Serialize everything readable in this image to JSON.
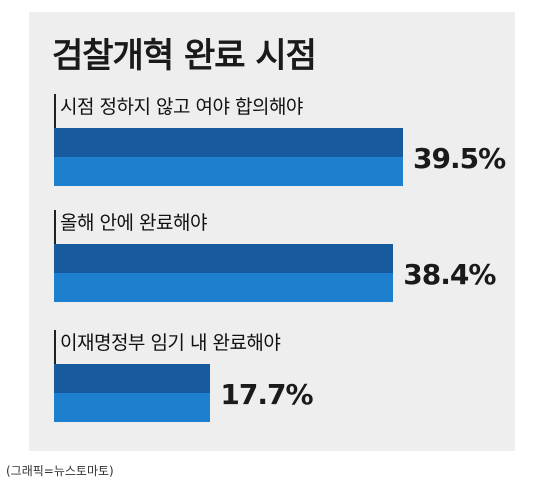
{
  "chart_data": {
    "type": "bar",
    "orientation": "horizontal",
    "title": "검찰개혁 완료 시점",
    "categories": [
      "시점 정하지 않고 여야 합의해야",
      "올해 안에 완료해야",
      "이재명정부 임기 내 완료해야"
    ],
    "values": [
      39.5,
      38.4,
      17.7
    ],
    "value_labels": [
      "39.5%",
      "38.4%",
      "17.7%"
    ],
    "xlim": [
      0,
      45
    ],
    "grid": false,
    "legend": "none",
    "colors": {
      "bar_top": "#175a9e",
      "bar_bottom": "#1f7fcf",
      "panel": "#eeeeee"
    }
  },
  "caption": "(그래픽=뉴스토마토)"
}
